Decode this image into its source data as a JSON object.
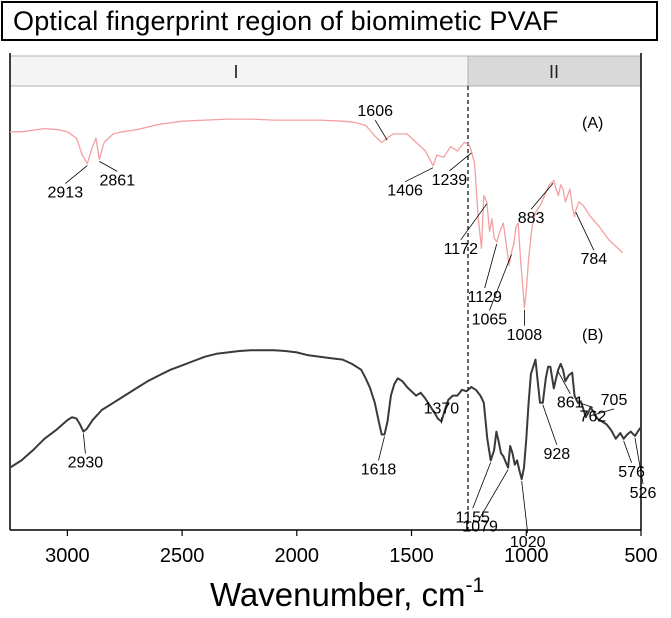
{
  "chart_data": {
    "type": "line",
    "title": "Optical fingerprint region of biomimetic PVAF",
    "xlabel_main": "Wavenumber",
    "xlabel_comma": ",",
    "xlabel_unit": "cm",
    "xlabel_exp": "-1",
    "xlim": [
      3250,
      500
    ],
    "x_reversed": true,
    "xticks": [
      3000,
      2500,
      2000,
      1500,
      1000,
      500
    ],
    "xtick_labels": [
      "3000",
      "2500",
      "2000",
      "1500",
      "1000",
      "500"
    ],
    "regions": [
      {
        "label": "I",
        "from": 3250,
        "to": 1250
      },
      {
        "label": "II",
        "from": 1250,
        "to": 500
      }
    ],
    "divider_x": 1250,
    "series": [
      {
        "name": "(A)",
        "color": "#f4a0a0",
        "x": [
          3250,
          3200,
          3100,
          3040,
          3000,
          2960,
          2935,
          2913,
          2890,
          2875,
          2861,
          2840,
          2800,
          2760,
          2700,
          2600,
          2500,
          2400,
          2300,
          2200,
          2100,
          2000,
          1900,
          1800,
          1750,
          1700,
          1660,
          1630,
          1606,
          1580,
          1520,
          1480,
          1440,
          1420,
          1406,
          1390,
          1360,
          1330,
          1300,
          1270,
          1250,
          1239,
          1225,
          1210,
          1195,
          1185,
          1172,
          1160,
          1150,
          1140,
          1129,
          1115,
          1100,
          1085,
          1075,
          1065,
          1055,
          1045,
          1035,
          1025,
          1015,
          1008,
          1000,
          990,
          975,
          960,
          940,
          920,
          900,
          880,
          870,
          860,
          850,
          840,
          830,
          820,
          810,
          800,
          790,
          784,
          770,
          750,
          720,
          680,
          640,
          600,
          580
        ],
        "y": [
          0.85,
          0.85,
          0.865,
          0.86,
          0.85,
          0.82,
          0.74,
          0.7,
          0.78,
          0.82,
          0.72,
          0.8,
          0.84,
          0.85,
          0.86,
          0.885,
          0.9,
          0.905,
          0.91,
          0.91,
          0.905,
          0.905,
          0.905,
          0.9,
          0.895,
          0.88,
          0.83,
          0.8,
          0.82,
          0.84,
          0.84,
          0.8,
          0.76,
          0.72,
          0.69,
          0.74,
          0.73,
          0.78,
          0.76,
          0.8,
          0.79,
          0.76,
          0.7,
          0.45,
          0.3,
          0.55,
          0.52,
          0.38,
          0.44,
          0.35,
          0.33,
          0.38,
          0.42,
          0.3,
          0.22,
          0.28,
          0.32,
          0.4,
          0.42,
          0.25,
          0.12,
          0.02,
          0.1,
          0.25,
          0.4,
          0.47,
          0.5,
          0.55,
          0.6,
          0.62,
          0.58,
          0.55,
          0.6,
          0.58,
          0.52,
          0.55,
          0.58,
          0.5,
          0.45,
          0.48,
          0.52,
          0.5,
          0.45,
          0.4,
          0.34,
          0.3,
          0.28
        ]
      },
      {
        "name": "(B)",
        "color": "#3a3a3a",
        "x": [
          3250,
          3200,
          3150,
          3100,
          3050,
          3000,
          2980,
          2960,
          2945,
          2930,
          2915,
          2890,
          2850,
          2800,
          2750,
          2700,
          2650,
          2600,
          2550,
          2500,
          2450,
          2400,
          2350,
          2300,
          2250,
          2200,
          2150,
          2100,
          2050,
          2000,
          1950,
          1900,
          1850,
          1800,
          1760,
          1720,
          1700,
          1680,
          1660,
          1640,
          1630,
          1618,
          1605,
          1590,
          1575,
          1560,
          1540,
          1520,
          1500,
          1480,
          1460,
          1440,
          1420,
          1400,
          1385,
          1370,
          1355,
          1340,
          1320,
          1300,
          1280,
          1260,
          1240,
          1220,
          1200,
          1185,
          1170,
          1155,
          1140,
          1130,
          1120,
          1110,
          1100,
          1090,
          1079,
          1070,
          1060,
          1050,
          1040,
          1030,
          1020,
          1010,
          1000,
          990,
          980,
          970,
          960,
          950,
          940,
          928,
          915,
          905,
          895,
          880,
          870,
          861,
          850,
          840,
          830,
          815,
          800,
          790,
          775,
          762,
          750,
          740,
          730,
          720,
          705,
          690,
          670,
          650,
          630,
          610,
          590,
          576,
          560,
          545,
          526,
          510,
          500
        ],
        "y": [
          0.1,
          0.15,
          0.22,
          0.3,
          0.36,
          0.43,
          0.45,
          0.44,
          0.4,
          0.35,
          0.37,
          0.43,
          0.5,
          0.55,
          0.6,
          0.65,
          0.7,
          0.74,
          0.78,
          0.81,
          0.84,
          0.87,
          0.89,
          0.9,
          0.91,
          0.915,
          0.915,
          0.915,
          0.91,
          0.9,
          0.88,
          0.87,
          0.86,
          0.85,
          0.82,
          0.78,
          0.72,
          0.65,
          0.55,
          0.4,
          0.33,
          0.33,
          0.42,
          0.6,
          0.68,
          0.72,
          0.7,
          0.66,
          0.63,
          0.6,
          0.62,
          0.58,
          0.53,
          0.48,
          0.44,
          0.42,
          0.5,
          0.57,
          0.6,
          0.6,
          0.64,
          0.63,
          0.66,
          0.64,
          0.6,
          0.55,
          0.3,
          0.15,
          0.22,
          0.35,
          0.28,
          0.2,
          0.18,
          0.14,
          0.1,
          0.25,
          0.2,
          0.12,
          0.15,
          0.08,
          0.02,
          0.1,
          0.3,
          0.55,
          0.75,
          0.8,
          0.85,
          0.7,
          0.55,
          0.55,
          0.72,
          0.8,
          0.8,
          0.65,
          0.72,
          0.78,
          0.82,
          0.78,
          0.7,
          0.74,
          0.76,
          0.6,
          0.55,
          0.56,
          0.5,
          0.45,
          0.48,
          0.52,
          0.48,
          0.44,
          0.42,
          0.4,
          0.36,
          0.3,
          0.34,
          0.3,
          0.33,
          0.35,
          0.32,
          0.36,
          0.38
        ]
      }
    ],
    "peaks_A": [
      {
        "label": "2913",
        "x": 2913
      },
      {
        "label": "2861",
        "x": 2861
      },
      {
        "label": "1606",
        "x": 1606
      },
      {
        "label": "1406",
        "x": 1406
      },
      {
        "label": "1239",
        "x": 1239
      },
      {
        "label": "1172",
        "x": 1172
      },
      {
        "label": "1129",
        "x": 1129
      },
      {
        "label": "1065",
        "x": 1065
      },
      {
        "label": "1008",
        "x": 1008
      },
      {
        "label": "883",
        "x": 883
      },
      {
        "label": "784",
        "x": 784
      }
    ],
    "peaks_B": [
      {
        "label": "2930",
        "x": 2930
      },
      {
        "label": "1618",
        "x": 1618
      },
      {
        "label": "1370",
        "x": 1370
      },
      {
        "label": "1155",
        "x": 1155
      },
      {
        "label": "1079",
        "x": 1079
      },
      {
        "label": "1020",
        "x": 1020
      },
      {
        "label": "928",
        "x": 928
      },
      {
        "label": "861",
        "x": 861
      },
      {
        "label": "762",
        "x": 762
      },
      {
        "label": "705",
        "x": 705
      },
      {
        "label": "576",
        "x": 576
      },
      {
        "label": "526",
        "x": 526
      }
    ]
  }
}
